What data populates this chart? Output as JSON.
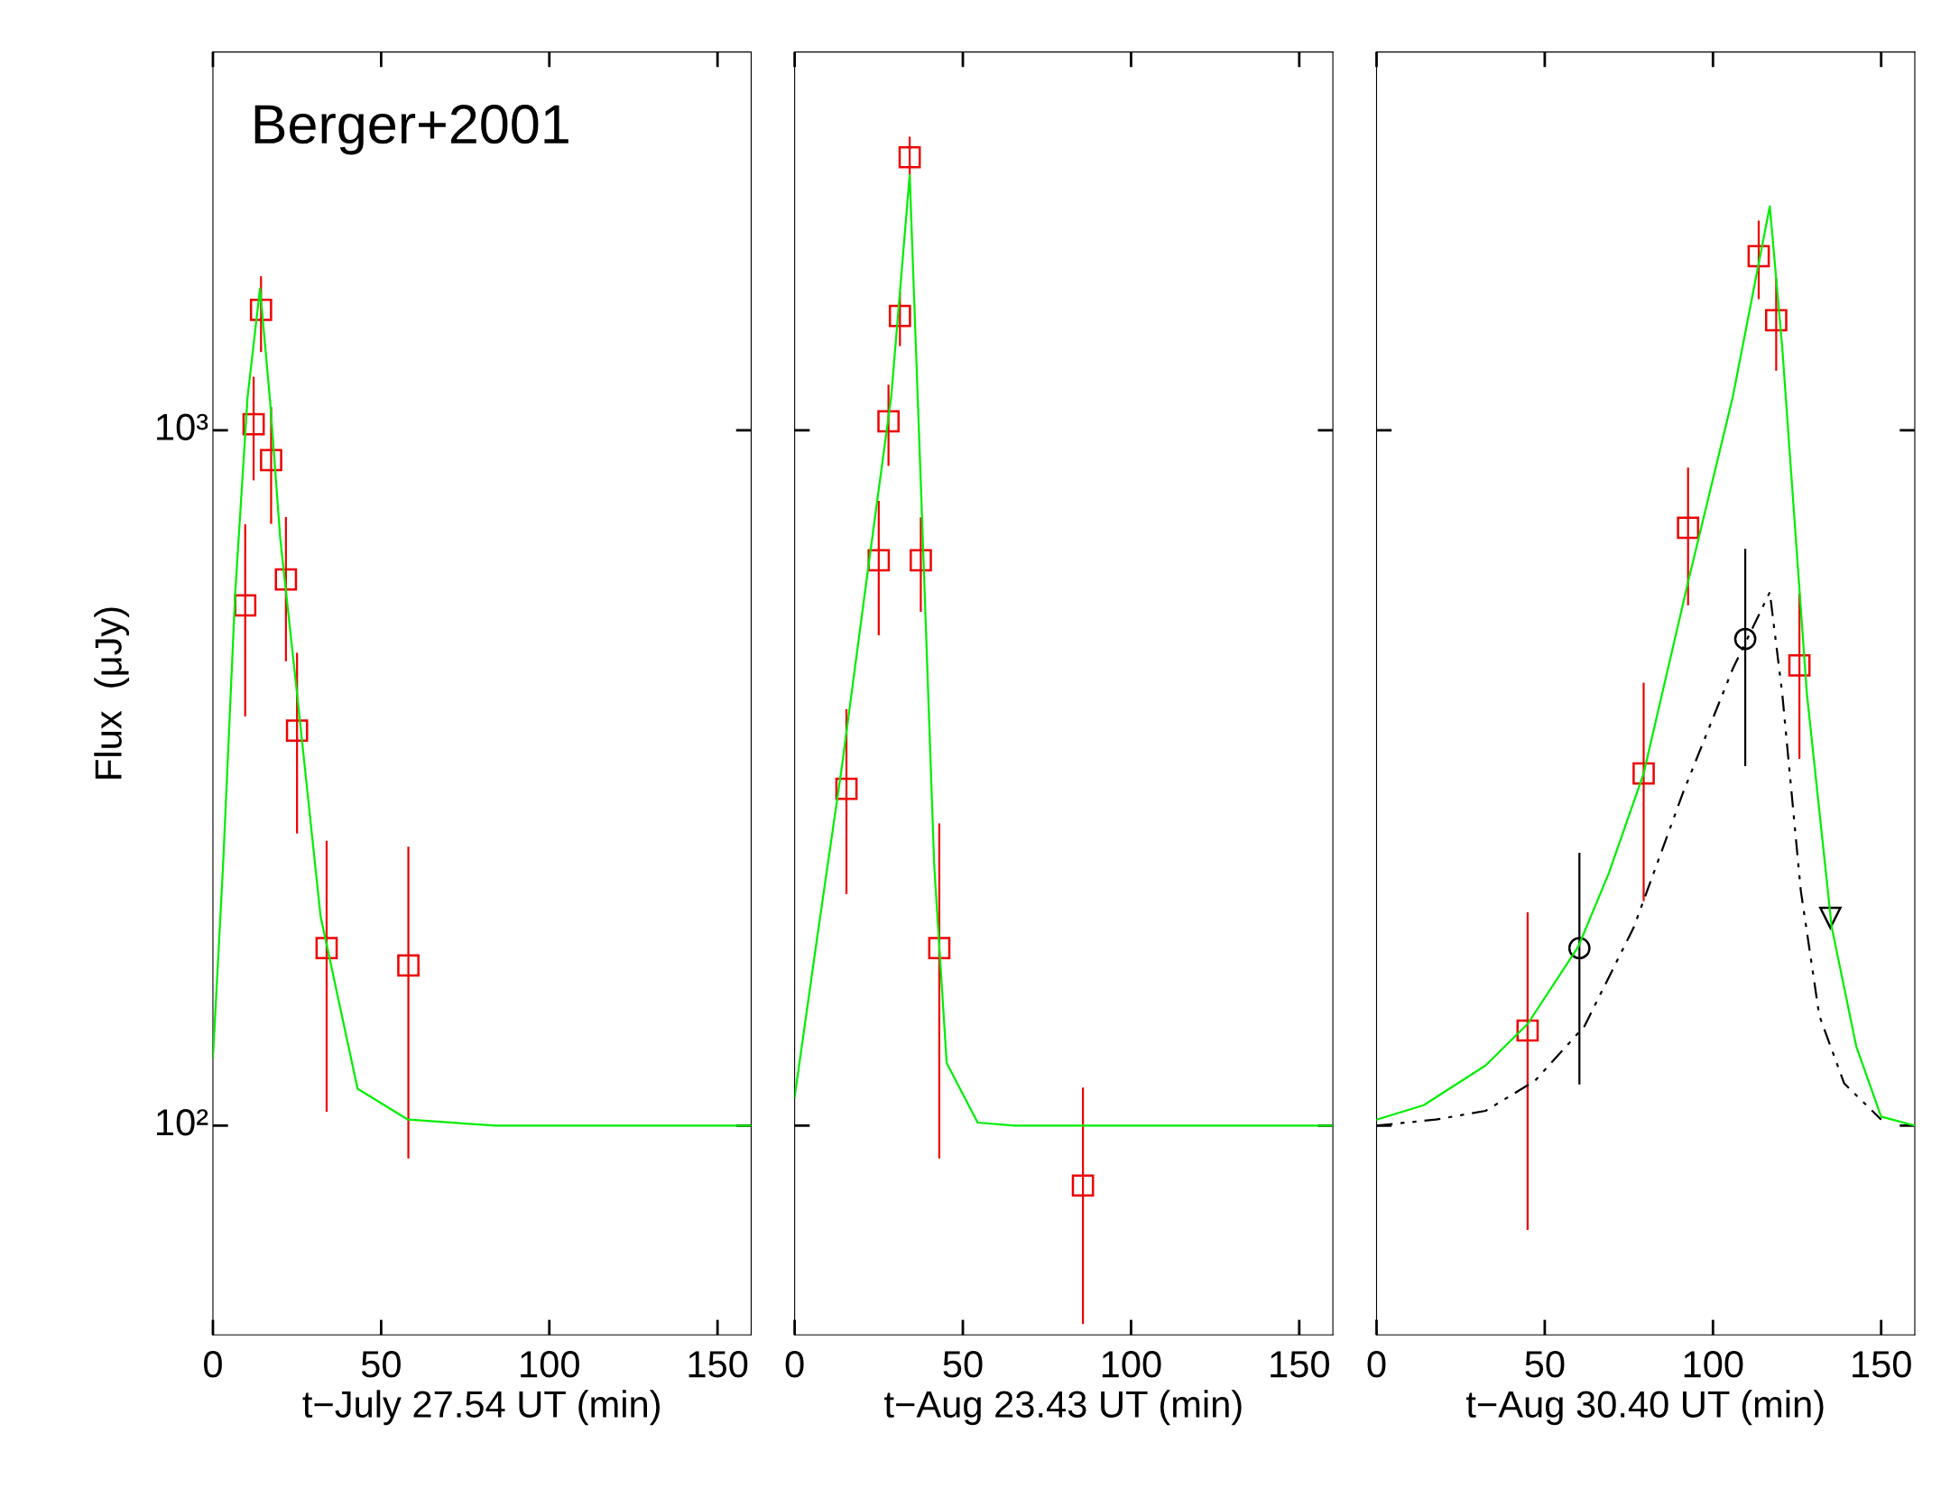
{
  "chart_data": [
    {
      "type": "line",
      "xlabel": "t−July 27.54 UT (min)",
      "ylabel": "Flux  (μJy)",
      "annotations": [
        "Berger+2001"
      ],
      "log": "y",
      "xlim": [
        0,
        160
      ],
      "xticks": [
        0,
        50,
        100,
        150
      ],
      "ylim": [
        50,
        3500
      ],
      "yticks": [
        {
          "value": 100,
          "label": "10²"
        },
        {
          "value": 1000,
          "label": "10³"
        }
      ],
      "grid": false,
      "series": [
        {
          "type": "line",
          "color": "#00ee00",
          "line_style": "solid",
          "marker": "none",
          "x": [
            0,
            3,
            6.6,
            10.3,
            14,
            17,
            20,
            25,
            32,
            43,
            58,
            84,
            160
          ],
          "values": [
            125,
            236,
            580,
            1117,
            1600,
            1100,
            700,
            418,
            200,
            113,
            102,
            100,
            100
          ]
        },
        {
          "type": "scatter",
          "color": "#ee0000",
          "marker": "square",
          "x": [
            9.6,
            12.1,
            14.3,
            17.3,
            21.7,
            25.0,
            33.8,
            58.1
          ],
          "values": [
            560,
            1020,
            1490,
            906,
            610,
            370,
            180,
            170
          ],
          "errors": [
            [
              389,
              730
            ],
            [
              850,
              1190
            ],
            [
              1300,
              1660
            ],
            [
              736,
              1076
            ],
            [
              467,
              748
            ],
            [
              264,
              477
            ],
            [
              105,
              256
            ],
            [
              90,
              251
            ]
          ]
        }
      ]
    },
    {
      "type": "line",
      "xlabel": "t−Aug 23.43 UT (min)",
      "log": "y",
      "xlim": [
        0,
        160
      ],
      "xticks": [
        0,
        50,
        100,
        150
      ],
      "ylim": [
        50,
        3500
      ],
      "tick_labels": "x",
      "grid": false,
      "series": [
        {
          "type": "line",
          "color": "#00ee00",
          "line_style": "solid",
          "marker": "none",
          "x": [
            0,
            6.6,
            14,
            21.3,
            28.7,
            34.2,
            37.9,
            41.5,
            45.2,
            54.4,
            65.4,
            160
          ],
          "values": [
            110,
            185,
            327,
            605,
            1117,
            2330,
            742,
            236,
            123,
            101,
            100,
            100
          ]
        },
        {
          "type": "scatter",
          "color": "#ee0000",
          "marker": "square",
          "x": [
            15.4,
            25.0,
            27.9,
            31.3,
            34.2,
            37.5,
            43.0,
            85.7
          ],
          "values": [
            305,
            650,
            1030,
            1460,
            2470,
            650,
            180,
            82
          ],
          "errors": [
            [
              216,
              396
            ],
            [
              509,
              789
            ],
            [
              892,
              1159
            ],
            [
              1326,
              1575
            ],
            [
              2302,
              2635
            ],
            [
              550,
              747
            ],
            [
              90,
              271
            ],
            [
              52,
              113
            ]
          ]
        }
      ]
    },
    {
      "type": "line",
      "xlabel": "t−Aug 30.40 UT (min)",
      "log": "y",
      "xlim": [
        0,
        160
      ],
      "xticks": [
        0,
        50,
        100,
        150
      ],
      "ylim": [
        50,
        3500
      ],
      "tick_labels": "x",
      "grid": false,
      "series": [
        {
          "type": "line",
          "color": "#00ee00",
          "line_style": "solid",
          "marker": "none",
          "x": [
            0,
            14,
            32.4,
            44.9,
            60.0,
            69.1,
            79.4,
            92.6,
            105.9,
            116.9,
            120.6,
            127.9,
            135.3,
            142.6,
            150,
            160
          ],
          "values": [
            102,
            107,
            122,
            140,
            181,
            231,
            321,
            605,
            1117,
            2100,
            1315,
            419,
            193,
            130,
            103,
            100
          ]
        },
        {
          "type": "line",
          "color": "#000000",
          "line_style": "dashdot",
          "marker": "none",
          "x": [
            0,
            17.6,
            32.4,
            47.1,
            61.8,
            76.5,
            91.2,
            105.9,
            116.9,
            120.6,
            126.1,
            131.6,
            139.0,
            150
          ],
          "values": [
            100,
            102,
            105,
            116,
            139,
            193,
            302,
            454,
            585,
            418,
            218,
            144,
            115,
            102
          ]
        },
        {
          "type": "scatter",
          "color": "#ee0000",
          "marker": "square",
          "x": [
            44.9,
            79.4,
            92.6,
            113.6,
            118.8,
            125.7
          ],
          "values": [
            137,
            321,
            724,
            1780,
            1440,
            459
          ],
          "errors": [
            [
              71,
              202
            ],
            [
              211,
              432
            ],
            [
              562,
              881
            ],
            [
              1549,
              1996
            ],
            [
              1222,
              1647
            ],
            [
              338,
              580
            ]
          ]
        },
        {
          "type": "scatter",
          "color": "#000000",
          "marker": "circle",
          "x": [
            60.3,
            109.6
          ],
          "values": [
            180,
            501
          ],
          "errors": [
            [
              115,
              246
            ],
            [
              330,
              673
            ]
          ]
        },
        {
          "type": "scatter",
          "color": "#000000",
          "marker": "triangle",
          "x": [
            134.9
          ],
          "values": [
            199
          ]
        }
      ]
    }
  ]
}
